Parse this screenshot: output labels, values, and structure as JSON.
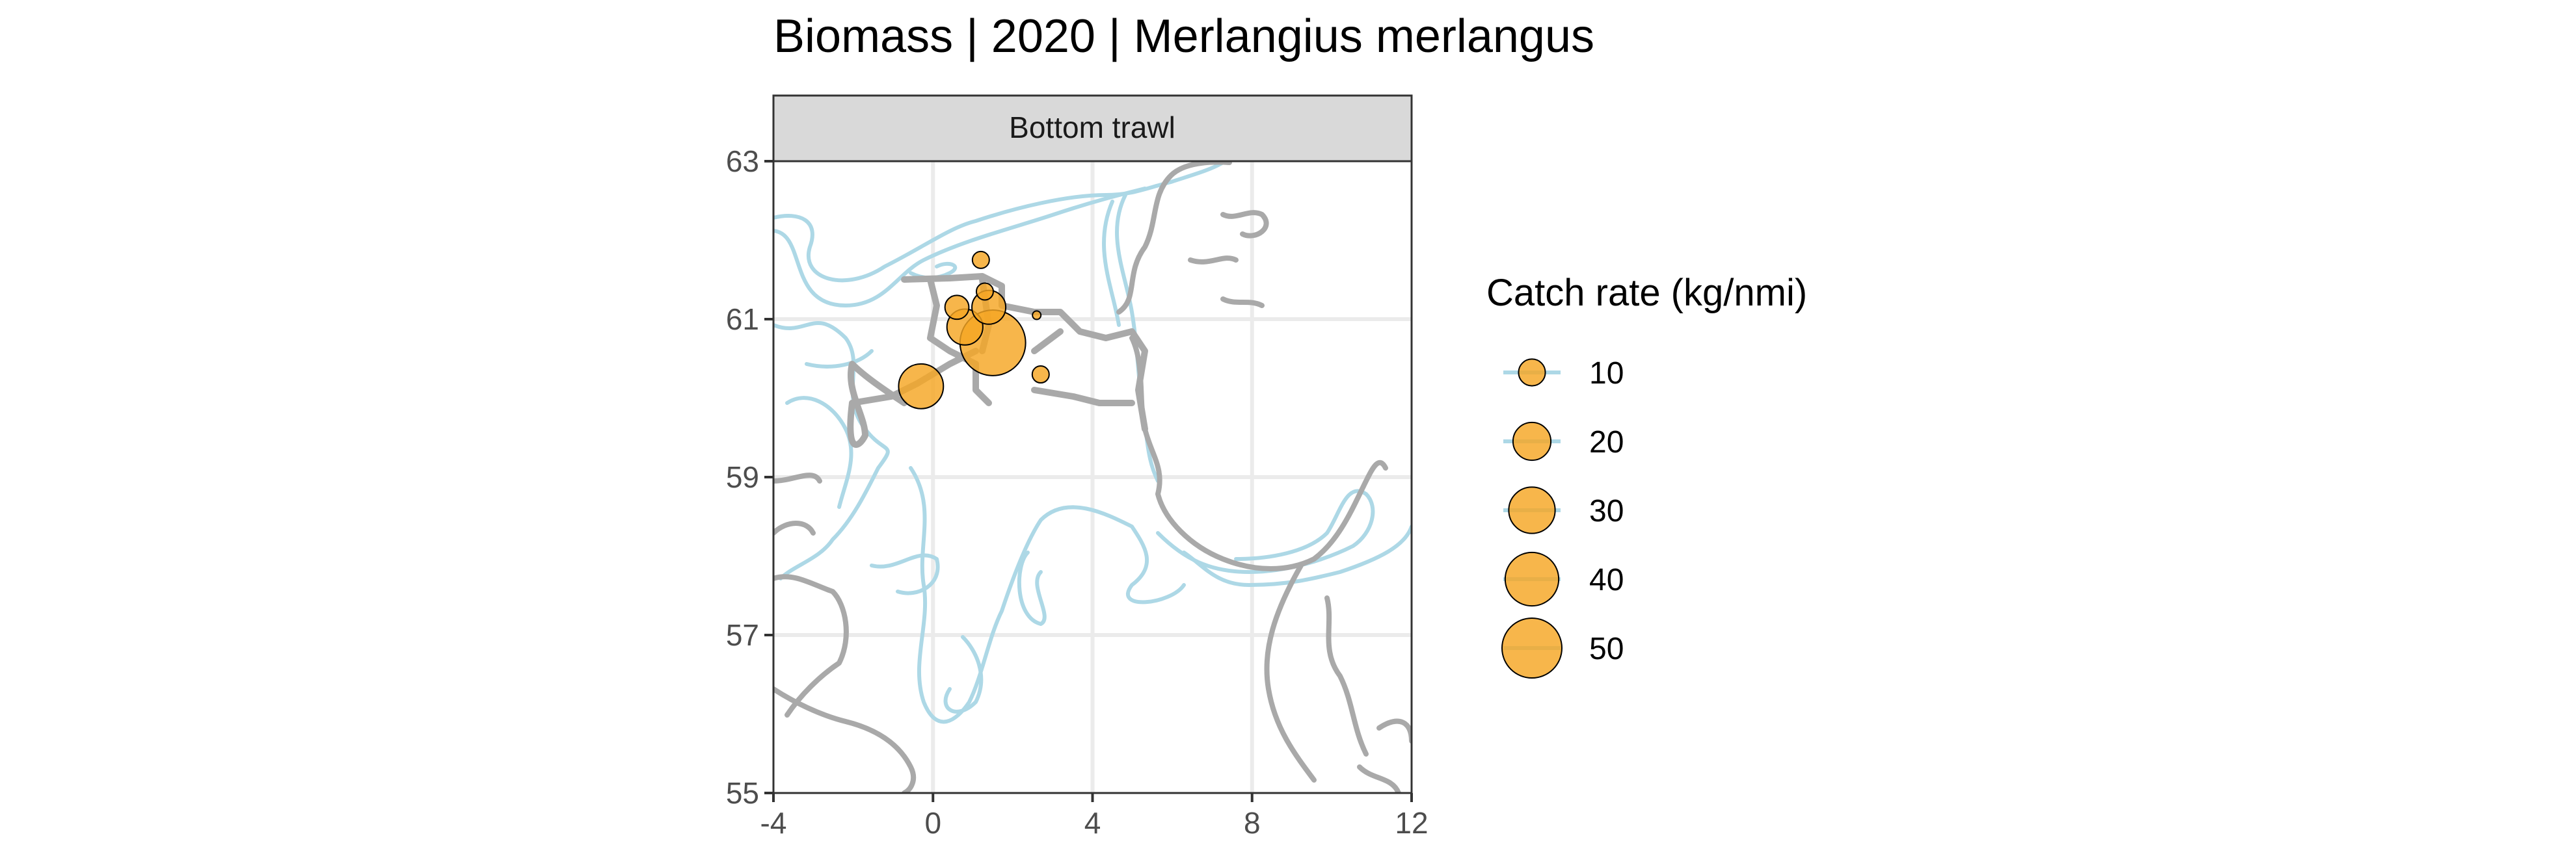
{
  "chart_data": {
    "type": "scatter",
    "title": "Biomass | 2020 | Merlangius merlangus",
    "facet_label": "Bottom trawl",
    "xlabel": "",
    "ylabel": "",
    "xlim": [
      -4,
      12
    ],
    "ylim": [
      55,
      63
    ],
    "x_ticks": [
      -4,
      0,
      4,
      8,
      12
    ],
    "y_ticks": [
      55,
      57,
      59,
      61,
      63
    ],
    "x_tick_labels": [
      "-4",
      "0",
      "4",
      "8",
      "12"
    ],
    "y_tick_labels": [
      "55",
      "57",
      "59",
      "61",
      "63"
    ],
    "grid": true,
    "legend": {
      "title": "Catch rate (kg/nmi)",
      "placement": "right",
      "values": [
        10,
        20,
        30,
        40,
        50
      ],
      "labels": [
        "10",
        "20",
        "30",
        "40",
        "50"
      ]
    },
    "point_color": "#f5a623",
    "point_stroke": "#000000",
    "series": [
      {
        "points": [
          {
            "lon": 1.2,
            "lat": 61.75,
            "catch": 4
          },
          {
            "lon": 1.3,
            "lat": 61.35,
            "catch": 4
          },
          {
            "lon": 0.6,
            "lat": 61.15,
            "catch": 8
          },
          {
            "lon": 1.4,
            "lat": 61.15,
            "catch": 16
          },
          {
            "lon": 0.8,
            "lat": 60.9,
            "catch": 18
          },
          {
            "lon": 1.5,
            "lat": 60.7,
            "catch": 60
          },
          {
            "lon": 2.6,
            "lat": 61.05,
            "catch": 1
          },
          {
            "lon": 2.7,
            "lat": 60.3,
            "catch": 4
          },
          {
            "lon": -0.3,
            "lat": 60.15,
            "catch": 28
          }
        ]
      }
    ],
    "map_layers": [
      "coastline",
      "depth-contours",
      "survey-track"
    ],
    "colors": {
      "coast": "#a9a9a9",
      "contour": "#add8e6",
      "track": "#a9a9a9",
      "grid": "#ebebeb",
      "strip": "#d9d9d9"
    }
  }
}
